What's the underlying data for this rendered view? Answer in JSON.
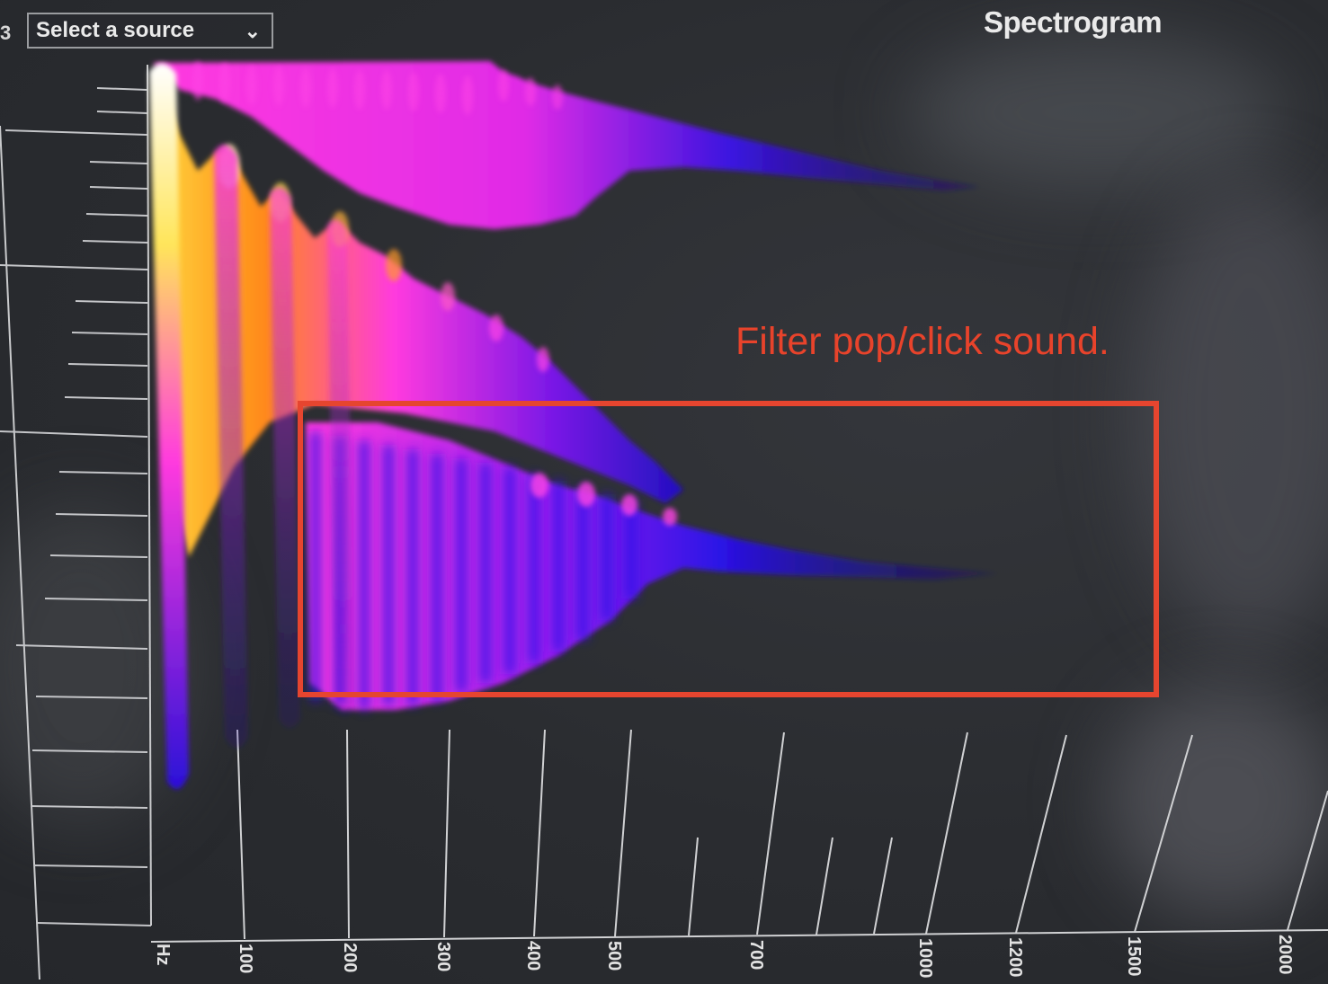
{
  "window": {
    "title": "Spectrogram",
    "left_edge_fragment": "3"
  },
  "source_select": {
    "label": "Select a source",
    "chevron": "chevron-down-icon"
  },
  "annotation": {
    "text": "Filter pop/click sound.",
    "color": "#e6452f"
  },
  "frequency_axis": {
    "unit_label": "Hz",
    "ticks": [
      "100",
      "200",
      "300",
      "400",
      "500",
      "700",
      "1000",
      "1200",
      "1500",
      "2000"
    ]
  },
  "colors": {
    "background": "#2b2d31",
    "grid": "#c9cacc",
    "heat_low": "#1a0bd6",
    "heat_mid": "#ff2bd9",
    "heat_high": "#ff8a1a",
    "heat_peak": "#ffffcc"
  }
}
